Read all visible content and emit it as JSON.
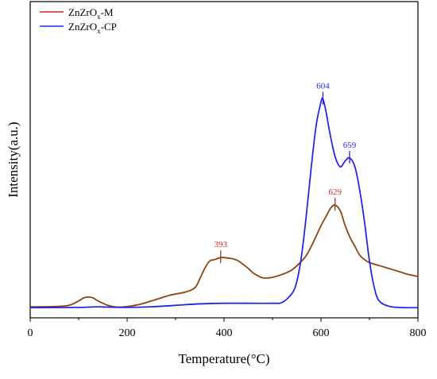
{
  "chart_data": {
    "type": "line",
    "xlabel": "Temperature(°C)",
    "ylabel": "Intensity(a.u.)",
    "xlim": [
      0,
      800
    ],
    "ylim": [
      0,
      1.0
    ],
    "x_ticks": [
      "0",
      "200",
      "400",
      "600",
      "800"
    ],
    "grid": false,
    "y_tick_labels": false,
    "legend_position": "top-left",
    "series": [
      {
        "name": "ZnZrOx-M",
        "label_base": "ZnZrO",
        "label_sub": "x",
        "label_suffix": "-M",
        "color": "#8b4513",
        "legend_color": "#d62728",
        "x": [
          0,
          50,
          80,
          100,
          110,
          120,
          130,
          140,
          160,
          180,
          200,
          230,
          260,
          290,
          320,
          340,
          350,
          360,
          370,
          380,
          393,
          400,
          410,
          420,
          430,
          440,
          450,
          460,
          470,
          480,
          490,
          500,
          520,
          540,
          560,
          570,
          580,
          590,
          600,
          610,
          620,
          629,
          640,
          650,
          660,
          670,
          680,
          690,
          700,
          720,
          740,
          760,
          780,
          800
        ],
        "y": [
          0.005,
          0.006,
          0.01,
          0.025,
          0.035,
          0.038,
          0.035,
          0.025,
          0.01,
          0.004,
          0.006,
          0.015,
          0.03,
          0.045,
          0.055,
          0.07,
          0.1,
          0.135,
          0.16,
          0.165,
          0.172,
          0.172,
          0.17,
          0.167,
          0.16,
          0.148,
          0.135,
          0.12,
          0.11,
          0.103,
          0.103,
          0.105,
          0.115,
          0.13,
          0.16,
          0.18,
          0.21,
          0.245,
          0.28,
          0.31,
          0.34,
          0.35,
          0.33,
          0.28,
          0.24,
          0.21,
          0.18,
          0.165,
          0.155,
          0.145,
          0.135,
          0.125,
          0.115,
          0.108
        ]
      },
      {
        "name": "ZnZrOx-CP",
        "label_base": "ZnZrO",
        "label_sub": "x",
        "label_suffix": "-CP",
        "color": "#2626e6",
        "x": [
          0,
          100,
          120,
          140,
          160,
          200,
          250,
          300,
          350,
          400,
          450,
          500,
          520,
          540,
          550,
          560,
          570,
          580,
          590,
          600,
          604,
          610,
          620,
          630,
          640,
          650,
          659,
          670,
          680,
          690,
          700,
          710,
          720,
          740,
          760,
          780,
          800
        ],
        "y": [
          0.002,
          0.003,
          0.004,
          0.005,
          0.004,
          0.003,
          0.005,
          0.01,
          0.015,
          0.017,
          0.017,
          0.017,
          0.02,
          0.05,
          0.09,
          0.18,
          0.32,
          0.48,
          0.62,
          0.7,
          0.71,
          0.67,
          0.58,
          0.51,
          0.48,
          0.5,
          0.51,
          0.48,
          0.4,
          0.29,
          0.16,
          0.07,
          0.025,
          0.007,
          0.003,
          0.002,
          0.002
        ]
      }
    ],
    "annotations": [
      {
        "text": "393",
        "x": 393,
        "y": 0.172,
        "series": 0,
        "color": "#d62728"
      },
      {
        "text": "629",
        "x": 629,
        "y": 0.35,
        "series": 0,
        "color": "#d62728"
      },
      {
        "text": "604",
        "x": 604,
        "y": 0.71,
        "series": 1,
        "color": "#2626e6"
      },
      {
        "text": "659",
        "x": 659,
        "y": 0.51,
        "series": 1,
        "color": "#2626e6"
      }
    ]
  }
}
